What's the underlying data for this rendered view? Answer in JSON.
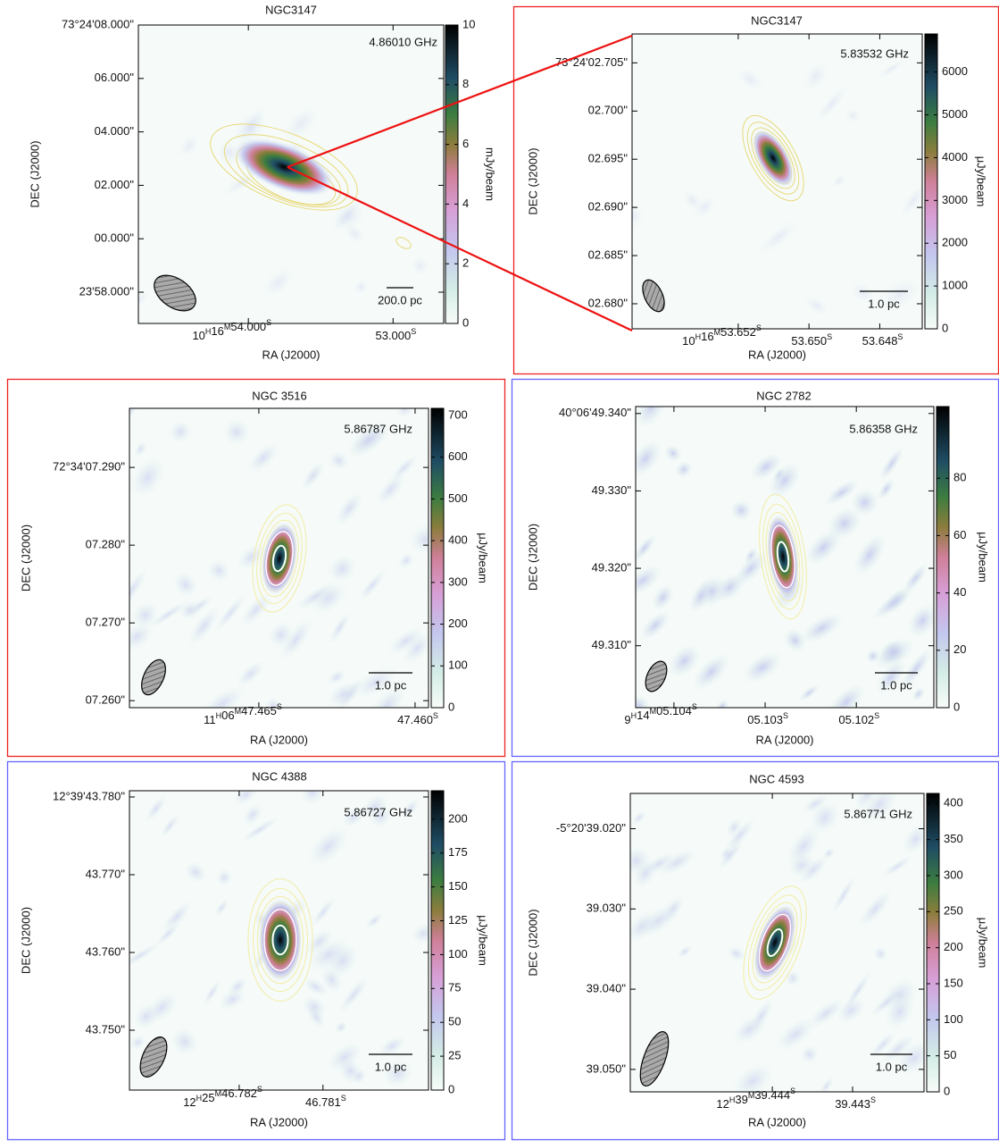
{
  "chart_data": [
    {
      "type": "image",
      "title": "NGC3147",
      "frequency": "4.86010 GHz",
      "scale_bar_label": "200.0 pc",
      "x_label": "RA (J2000)",
      "y_label": "DEC (J2000)",
      "colorbar_label": "mJy/beam",
      "xlim": [
        54.76,
        52.65
      ],
      "xticks": [
        {
          "value": 54.0,
          "label": "10H16M54.000S"
        },
        {
          "value": 53.0,
          "label": "53.000S"
        }
      ],
      "ylim": [
        -3.17,
        8.0
      ],
      "yticks": [
        {
          "value": 8,
          "label": "73°24'08.000\""
        },
        {
          "value": 6,
          "label": "06.000\""
        },
        {
          "value": 4,
          "label": "04.000\""
        },
        {
          "value": 2,
          "label": "02.000\""
        },
        {
          "value": 0,
          "label": "00.000\""
        },
        {
          "value": -2,
          "label": "23'58.000\""
        }
      ],
      "clim": [
        0,
        10
      ],
      "cticks": [
        0,
        2,
        4,
        6,
        8,
        10
      ]
    },
    {
      "type": "image",
      "title": "NGC3147",
      "frequency": "5.83532 GHz",
      "scale_bar_label": "1.0 pc",
      "x_label": "RA (J2000)",
      "y_label": "DEC (J2000)",
      "colorbar_label": "μJy/beam",
      "xlim": [
        53.655,
        53.6468
      ],
      "xticks": [
        {
          "value": 53.652,
          "label": "10H16M53.652S"
        },
        {
          "value": 53.65,
          "label": "53.650S"
        },
        {
          "value": 53.648,
          "label": "53.648S"
        }
      ],
      "ylim": [
        2.6774,
        2.708
      ],
      "yticks": [
        {
          "value": 2.705,
          "label": "73°24'02.705\""
        },
        {
          "value": 2.7,
          "label": "02.700\""
        },
        {
          "value": 2.695,
          "label": "02.695\""
        },
        {
          "value": 2.69,
          "label": "02.690\""
        },
        {
          "value": 2.685,
          "label": "02.685\""
        },
        {
          "value": 2.68,
          "label": "02.680\""
        }
      ],
      "clim": [
        0,
        6890
      ],
      "cticks": [
        0,
        1000,
        2000,
        3000,
        4000,
        5000,
        6000
      ]
    },
    {
      "type": "image",
      "title": "NGC 3516",
      "frequency": "5.86787 GHz",
      "scale_bar_label": "1.0 pc",
      "x_label": "RA (J2000)",
      "y_label": "DEC (J2000)",
      "colorbar_label": "μJy/beam",
      "xlim": [
        47.46914,
        47.45957
      ],
      "xticks": [
        {
          "value": 47.465,
          "label": "11H06M47.465S"
        },
        {
          "value": 47.46,
          "label": "47.460S"
        }
      ],
      "ylim": [
        7.2591,
        7.2976
      ],
      "yticks": [
        {
          "value": 7.29,
          "label": "72°34'07.290\""
        },
        {
          "value": 7.28,
          "label": "07.280\""
        },
        {
          "value": 7.27,
          "label": "07.270\""
        },
        {
          "value": 7.26,
          "label": "07.260\""
        }
      ],
      "clim": [
        0,
        717
      ],
      "cticks": [
        0,
        100,
        200,
        300,
        400,
        500,
        600,
        700
      ]
    },
    {
      "type": "image",
      "title": "NGC 2782",
      "frequency": "5.86358 GHz",
      "scale_bar_label": "1.0 pc",
      "x_label": "RA (J2000)",
      "y_label": "DEC (J2000)",
      "colorbar_label": "μJy/beam",
      "xlim": [
        5.10442,
        5.10115
      ],
      "xticks": [
        {
          "value": 5.104,
          "label": "9H14M05.104S"
        },
        {
          "value": 5.103,
          "label": "05.103S"
        },
        {
          "value": 5.102,
          "label": "05.102S"
        }
      ],
      "ylim": [
        49.302,
        49.3409
      ],
      "yticks": [
        {
          "value": 49.34,
          "label": "40°06'49.340\""
        },
        {
          "value": 49.33,
          "label": "49.330\""
        },
        {
          "value": 49.32,
          "label": "49.320\""
        },
        {
          "value": 49.31,
          "label": "49.310\""
        }
      ],
      "clim": [
        0,
        105
      ],
      "cticks": [
        0,
        20,
        40,
        60,
        80
      ]
    },
    {
      "type": "image",
      "title": "NGC 4388",
      "frequency": "5.86727 GHz",
      "scale_bar_label": "1.0 pc",
      "x_label": "RA (J2000)",
      "y_label": "DEC (J2000)",
      "colorbar_label": "μJy/beam",
      "xlim": [
        46.78331,
        46.77974
      ],
      "xticks": [
        {
          "value": 46.782,
          "label": "12H25M46.782S"
        },
        {
          "value": 46.781,
          "label": "46.781S"
        }
      ],
      "ylim": [
        43.7423,
        43.7808
      ],
      "yticks": [
        {
          "value": 43.78,
          "label": "12°39'43.780\""
        },
        {
          "value": 43.77,
          "label": "43.770\""
        },
        {
          "value": 43.76,
          "label": "43.760\""
        },
        {
          "value": 43.75,
          "label": "43.750\""
        }
      ],
      "clim": [
        0,
        221
      ],
      "cticks": [
        0,
        25,
        50,
        75,
        100,
        125,
        150,
        175,
        200
      ]
    },
    {
      "type": "image",
      "title": "NGC 4593",
      "frequency": "5.86771 GHz",
      "scale_bar_label": "1.0 pc",
      "x_label": "RA (J2000)",
      "y_label": "DEC (J2000)",
      "colorbar_label": "μJy/beam",
      "xlim": [
        39.44577,
        39.44211
      ],
      "xticks": [
        {
          "value": 39.444,
          "label": "12H39M39.444S"
        },
        {
          "value": 39.443,
          "label": "39.443S"
        }
      ],
      "ylim": [
        39.0528,
        39.0156
      ],
      "yticks": [
        {
          "value": 39.02,
          "label": "-5°20'39.020\""
        },
        {
          "value": 39.03,
          "label": "39.030\""
        },
        {
          "value": 39.04,
          "label": "39.040\""
        },
        {
          "value": 39.05,
          "label": "39.050\""
        }
      ],
      "clim": [
        0,
        414
      ],
      "cticks": [
        0,
        50,
        100,
        150,
        200,
        250,
        300,
        350,
        400
      ]
    }
  ]
}
